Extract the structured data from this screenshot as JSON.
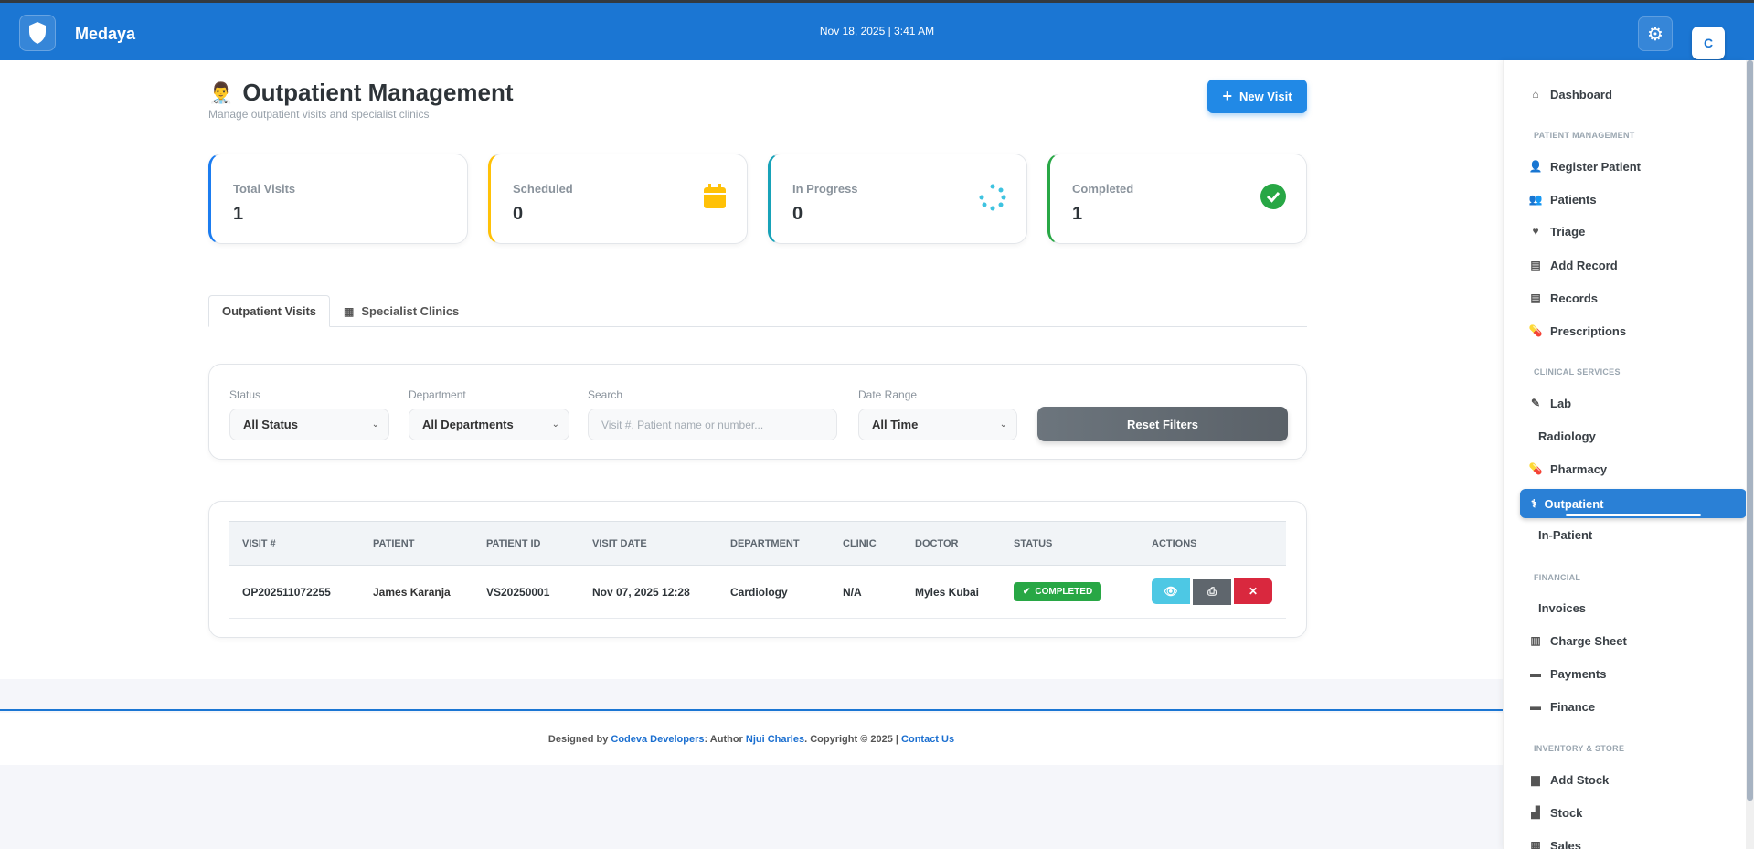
{
  "header": {
    "brand": "Medaya",
    "datetime": "Nov 18, 2025 | 3:41 AM",
    "avatar_initial": "C"
  },
  "page": {
    "title": "Outpatient Management",
    "subtitle": "Manage outpatient visits and specialist clinics",
    "new_visit": "New Visit"
  },
  "stats": [
    {
      "label": "Total Visits",
      "value": "1",
      "color": "#1b7cf0",
      "icon": "none"
    },
    {
      "label": "Scheduled",
      "value": "0",
      "color": "#ffc107",
      "icon": "calendar-icon"
    },
    {
      "label": "In Progress",
      "value": "0",
      "color": "#17a2b8",
      "icon": "spinner-icon"
    },
    {
      "label": "Completed",
      "value": "1",
      "color": "#28a745",
      "icon": "check-circle-icon"
    }
  ],
  "tabs": [
    "Outpatient Visits",
    "Specialist Clinics"
  ],
  "filters": {
    "status_label": "Status",
    "status_value": "All Status",
    "department_label": "Department",
    "department_value": "All Departments",
    "search_label": "Search",
    "search_placeholder": "Visit #, Patient name or number...",
    "date_label": "Date Range",
    "date_value": "All Time",
    "reset": "Reset Filters"
  },
  "table": {
    "headers": [
      "VISIT #",
      "PATIENT",
      "PATIENT ID",
      "VISIT DATE",
      "DEPARTMENT",
      "CLINIC",
      "DOCTOR",
      "STATUS",
      "ACTIONS"
    ],
    "rows": [
      {
        "visit": "OP202511072255",
        "patient": "James Karanja",
        "patient_id": "VS20250001",
        "date": "Nov 07, 2025 12:28",
        "department": "Cardiology",
        "clinic": "N/A",
        "doctor": "Myles Kubai",
        "status": "COMPLETED"
      }
    ]
  },
  "footer": {
    "designed_by": "Designed by ",
    "company": "Codeva Developers",
    "author_prefix": ": Author ",
    "author": "Njui Charles",
    "copyright": ". Copyright © 2025 | ",
    "contact": "Contact Us"
  },
  "sidebar": {
    "dashboard": "Dashboard",
    "patient_mgmt": "PATIENT MANAGEMENT",
    "register": "Register Patient",
    "patients": "Patients",
    "triage": "Triage",
    "add_record": "Add Record",
    "records": "Records",
    "prescriptions": "Prescriptions",
    "clinical": "CLINICAL SERVICES",
    "lab": "Lab",
    "radiology": "Radiology",
    "pharmacy": "Pharmacy",
    "outpatient": "Outpatient",
    "inpatient": "In-Patient",
    "financial": "FINANCIAL",
    "invoices": "Invoices",
    "charge_sheet": "Charge Sheet",
    "payments": "Payments",
    "finance": "Finance",
    "inventory": "INVENTORY & STORE",
    "add_stock": "Add Stock",
    "stock": "Stock",
    "sales": "Sales"
  }
}
